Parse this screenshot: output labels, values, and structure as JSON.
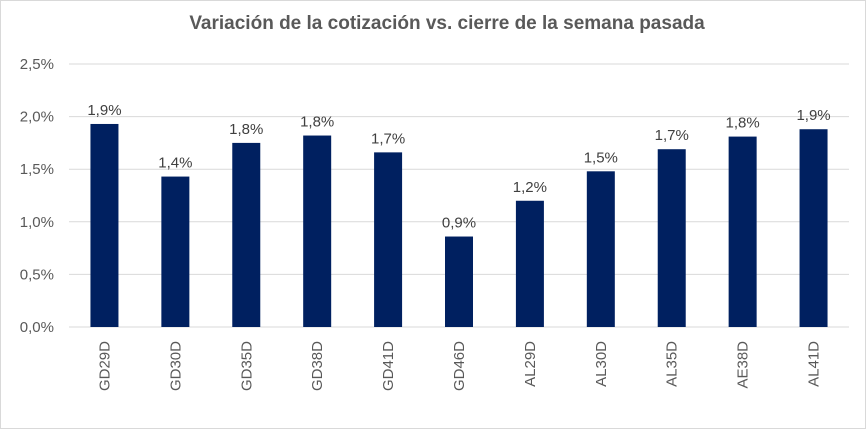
{
  "chart_data": {
    "type": "bar",
    "title": "Variación de la cotización vs. cierre de la semana pasada",
    "xlabel": "",
    "ylabel": "",
    "categories": [
      "GD29D",
      "GD30D",
      "GD35D",
      "GD38D",
      "GD41D",
      "GD46D",
      "AL29D",
      "AL30D",
      "AL35D",
      "AE38D",
      "AL41D"
    ],
    "values": [
      1.93,
      1.43,
      1.75,
      1.82,
      1.66,
      0.86,
      1.2,
      1.48,
      1.69,
      1.81,
      1.88
    ],
    "data_labels": [
      "1,9%",
      "1,4%",
      "1,8%",
      "1,8%",
      "1,7%",
      "0,9%",
      "1,2%",
      "1,5%",
      "1,7%",
      "1,8%",
      "1,9%"
    ],
    "y_ticks": [
      0,
      0.5,
      1.0,
      1.5,
      2.0,
      2.5
    ],
    "y_tick_labels": [
      "0,0%",
      "0,5%",
      "1,0%",
      "1,5%",
      "2,0%",
      "2,5%"
    ],
    "ylim": [
      0,
      2.5
    ],
    "grid": true,
    "legend": "none",
    "bar_color": "#002060",
    "grid_color": "#d9d9d9"
  }
}
